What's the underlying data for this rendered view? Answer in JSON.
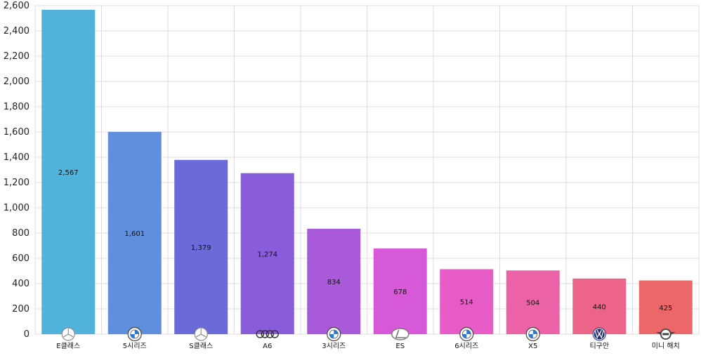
{
  "chart_data": {
    "type": "bar",
    "categories": [
      "E클래스",
      "5시리즈",
      "S클래스",
      "A6",
      "3시리즈",
      "ES",
      "6시리즈",
      "X5",
      "티구안",
      "미니 해치"
    ],
    "values": [
      2567,
      1601,
      1379,
      1274,
      834,
      678,
      514,
      504,
      440,
      425
    ],
    "data_labels": [
      "2,567",
      "1,601",
      "1,379",
      "1,274",
      "834",
      "678",
      "514",
      "504",
      "440",
      "425"
    ],
    "ylim": [
      0,
      2600
    ],
    "yticks": [
      0,
      200,
      400,
      600,
      800,
      1000,
      1200,
      1400,
      1600,
      1800,
      2000,
      2200,
      2400,
      2600
    ],
    "ytick_labels": [
      "0",
      "200",
      "400",
      "600",
      "800",
      "1,000",
      "1,200",
      "1,400",
      "1,600",
      "1,800",
      "2,000",
      "2,200",
      "2,400",
      "2,600"
    ],
    "colors": [
      "#4fb3dc",
      "#5f8fdc",
      "#6a6ad9",
      "#885cda",
      "#a95ad9",
      "#d65ad8",
      "#e85cc8",
      "#ec62a6",
      "#ec6487",
      "#ec6868"
    ],
    "logos": [
      "mercedes-benz-logo",
      "bmw-logo",
      "mercedes-benz-logo",
      "audi-logo",
      "bmw-logo",
      "lexus-logo",
      "bmw-logo",
      "bmw-logo",
      "volkswagen-logo",
      "mini-logo"
    ],
    "grid": true
  }
}
